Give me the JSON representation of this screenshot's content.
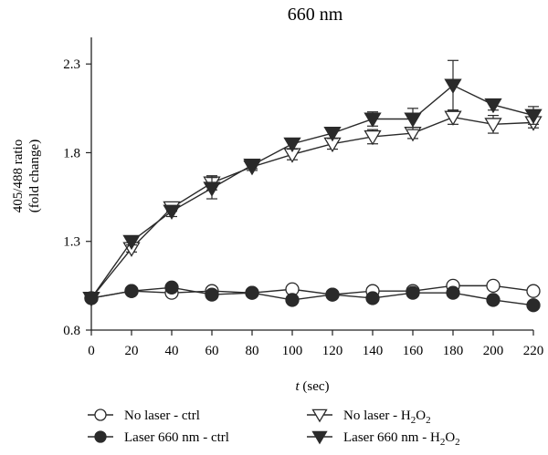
{
  "chart_data": {
    "type": "line",
    "title": "660 nm",
    "xlabel": {
      "var": "t",
      "unit": "(sec)"
    },
    "ylabel": {
      "line1": "405/488 ratio",
      "line2": "(fold change)"
    },
    "xlim": [
      0,
      220
    ],
    "ylim": [
      0.8,
      2.45
    ],
    "xticks": [
      0,
      20,
      40,
      60,
      80,
      100,
      120,
      140,
      160,
      180,
      200,
      220
    ],
    "yticks": [
      0.8,
      1.3,
      1.8,
      2.3
    ],
    "ytick_labels": [
      "0.8",
      "1.3",
      "1.8",
      "2.3"
    ],
    "grid": false,
    "legend_position": "bottom",
    "x": [
      0,
      20,
      40,
      60,
      80,
      100,
      120,
      140,
      160,
      180,
      200,
      220
    ],
    "series": [
      {
        "name": "No laser - ctrl",
        "legend": {
          "main": "No laser - ctrl",
          "sub": "",
          "tail": ""
        },
        "marker": "circle-open",
        "values": [
          0.98,
          1.02,
          1.01,
          1.02,
          1.01,
          1.03,
          1.0,
          1.02,
          1.02,
          1.05,
          1.05,
          1.02
        ],
        "error": [
          0,
          0,
          0,
          0,
          0,
          0,
          0,
          0,
          0,
          0,
          0,
          0
        ]
      },
      {
        "name": "Laser 660 nm - ctrl",
        "legend": {
          "main": "Laser 660 nm - ctrl",
          "sub": "",
          "tail": ""
        },
        "marker": "circle-filled",
        "values": [
          0.98,
          1.02,
          1.04,
          1.0,
          1.01,
          0.97,
          1.0,
          0.98,
          1.01,
          1.01,
          0.97,
          0.94
        ],
        "error": [
          0,
          0,
          0,
          0,
          0,
          0,
          0,
          0,
          0,
          0,
          0,
          0
        ]
      },
      {
        "name": "No laser - H2O2",
        "legend": {
          "main": "No laser - H",
          "sub": "2",
          "mid": "O",
          "sub2": "2"
        },
        "marker": "triangle-down-open",
        "values": [
          0.98,
          1.26,
          1.49,
          1.63,
          1.72,
          1.79,
          1.85,
          1.89,
          1.91,
          2.0,
          1.96,
          1.97
        ],
        "error": [
          0,
          0.02,
          0.02,
          0.04,
          0.02,
          0.03,
          0.03,
          0.04,
          0.03,
          0.04,
          0.05,
          0.03
        ]
      },
      {
        "name": "Laser 660 nm - H2O2",
        "legend": {
          "main": "Laser 660 nm - H",
          "sub": "2",
          "mid": "O",
          "sub2": "2"
        },
        "marker": "triangle-down-filled",
        "values": [
          0.98,
          1.3,
          1.47,
          1.6,
          1.73,
          1.85,
          1.91,
          1.99,
          1.99,
          2.18,
          2.07,
          2.01
        ],
        "error": [
          0,
          0.02,
          0.03,
          0.06,
          0.02,
          0.03,
          0.03,
          0.04,
          0.06,
          0.14,
          0.03,
          0.05
        ]
      }
    ]
  }
}
